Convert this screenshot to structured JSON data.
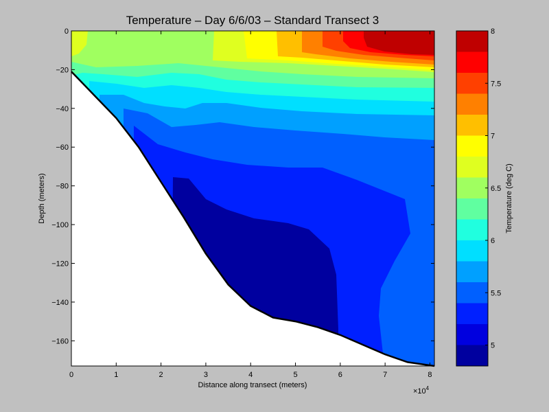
{
  "chart_data": {
    "type": "heatmap",
    "subtype": "filled-contour",
    "title": "Temperature – Day 6/6/03 – Standard Transect 3",
    "xlabel": "Distance along transect (meters)",
    "ylabel": "Depth (meters)",
    "x_multiplier_label": "×10",
    "x_multiplier_exponent": "4",
    "x_multiplier": 10000,
    "xlim": [
      0,
      8.1
    ],
    "ylim": [
      -173,
      0
    ],
    "x_ticks": [
      0,
      1,
      2,
      3,
      4,
      5,
      6,
      7,
      8
    ],
    "y_ticks": [
      0,
      -20,
      -40,
      -60,
      -80,
      -100,
      -120,
      -140,
      -160
    ],
    "colorbar": {
      "label": "Temperature (deg C)",
      "range": [
        4.8,
        8.0
      ],
      "ticks": [
        5,
        5.5,
        6,
        6.5,
        7,
        7.5,
        8
      ],
      "levels": [
        4.8,
        5.0,
        5.2,
        5.4,
        5.6,
        5.8,
        6.0,
        6.2,
        6.4,
        6.6,
        6.8,
        7.0,
        7.2,
        7.4,
        7.6,
        7.8,
        8.0
      ],
      "colors": [
        "#00009f",
        "#0000df",
        "#0020ff",
        "#0060ff",
        "#00a0ff",
        "#00dfff",
        "#20ffdf",
        "#60ffa0",
        "#a0ff60",
        "#dfff20",
        "#ffff00",
        "#ffbf00",
        "#ff8000",
        "#ff4000",
        "#ff0000",
        "#bf0000"
      ]
    },
    "seafloor_profile": [
      [
        0,
        -21
      ],
      [
        0.5,
        -33
      ],
      [
        1,
        -45
      ],
      [
        1.5,
        -60
      ],
      [
        2,
        -78
      ],
      [
        2.5,
        -96
      ],
      [
        3,
        -115
      ],
      [
        3.5,
        -131
      ],
      [
        4,
        -142
      ],
      [
        4.5,
        -148
      ],
      [
        5,
        -150
      ],
      [
        5.5,
        -153
      ],
      [
        6,
        -157
      ],
      [
        6.5,
        -162
      ],
      [
        7,
        -167
      ],
      [
        7.5,
        -171
      ],
      [
        8.1,
        -173
      ]
    ],
    "temperature_by_depth_profiles": [
      {
        "x": 0.3,
        "depth": [
          0,
          -10,
          -20
        ],
        "temp": [
          6.8,
          6.6,
          6.4
        ]
      },
      {
        "x": 2,
        "depth": [
          0,
          -20,
          -30,
          -40,
          -55,
          -70
        ],
        "temp": [
          6.6,
          6.4,
          6.0,
          5.8,
          5.6,
          5.2
        ]
      },
      {
        "x": 4,
        "depth": [
          0,
          -20,
          -30,
          -50,
          -70,
          -100,
          -140
        ],
        "temp": [
          6.8,
          6.4,
          6.0,
          5.6,
          5.2,
          4.9,
          4.9
        ]
      },
      {
        "x": 5,
        "depth": [
          0,
          -15,
          -25,
          -45,
          -65,
          -110,
          -150
        ],
        "temp": [
          7.2,
          6.8,
          6.2,
          5.6,
          5.2,
          4.9,
          4.9
        ]
      },
      {
        "x": 6,
        "depth": [
          0,
          -15,
          -25,
          -45,
          -65,
          -150
        ],
        "temp": [
          7.5,
          7.0,
          6.3,
          5.6,
          5.2,
          5.0
        ]
      },
      {
        "x": 7.5,
        "depth": [
          0,
          -15,
          -25,
          -45,
          -60,
          -170
        ],
        "temp": [
          7.9,
          7.4,
          6.5,
          5.8,
          5.3,
          5.1
        ]
      }
    ],
    "legend": "colorbar-right",
    "grid": false
  }
}
